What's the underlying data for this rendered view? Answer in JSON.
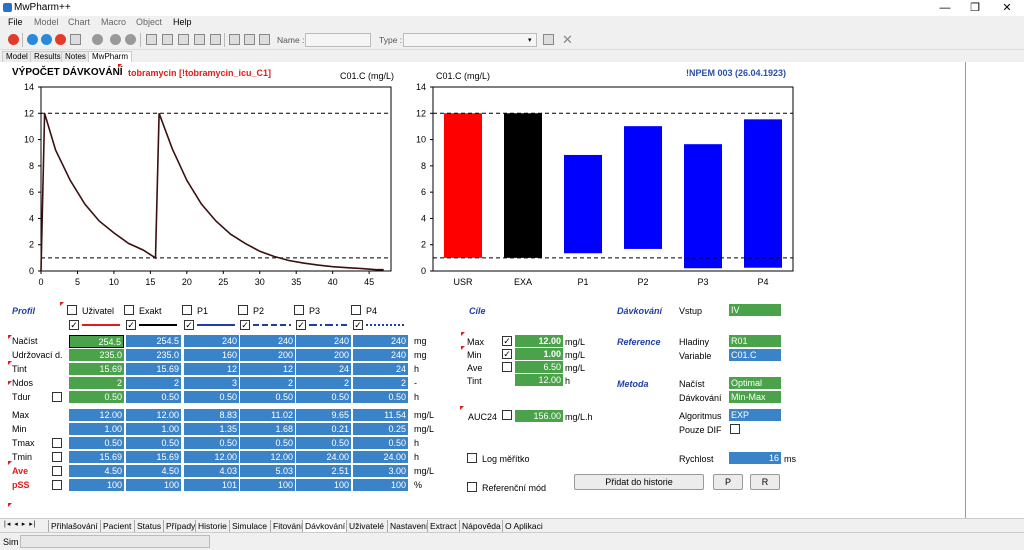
{
  "window": {
    "title": "MwPharm++",
    "minimize": "—",
    "restore": "❐",
    "close": "✕"
  },
  "menu": [
    "File",
    "Model",
    "Chart",
    "Macro",
    "Object",
    "Help"
  ],
  "toolbar": {
    "name_label": "Name :",
    "type_label": "Type :",
    "name_value": "",
    "type_value": ""
  },
  "top_tabs": [
    "Model",
    "Results",
    "Notes",
    "MwPharm"
  ],
  "header": {
    "title": "VÝPOČET DÁVKOVÁNÍ",
    "drug": "tobramycin [!tobramycin_icu_C1]",
    "patient": "!NPEM 003 (26.04.1923)"
  },
  "chart_data": [
    {
      "type": "line",
      "title": "",
      "xlabel": "",
      "ylabel": "C01.C (mg/L)",
      "xlim": [
        0,
        48
      ],
      "ylim": [
        0,
        14
      ],
      "xticks": [
        "0",
        "5",
        "10",
        "15",
        "20",
        "25",
        "30",
        "35",
        "40",
        "45"
      ],
      "yticks": [
        "0",
        "2",
        "4",
        "6",
        "8",
        "10",
        "12",
        "14"
      ],
      "reference_lines": [
        12,
        1
      ],
      "series": [
        {
          "x": [
            0,
            0.5,
            2,
            4,
            6,
            8,
            10,
            12,
            14,
            15.7,
            16.2,
            18,
            20,
            22,
            24,
            26,
            28,
            30,
            32,
            34,
            36,
            38,
            40,
            42,
            44,
            46,
            47
          ],
          "values": [
            0,
            12,
            9.2,
            6.9,
            5.1,
            3.8,
            2.9,
            2.1,
            1.6,
            1.0,
            12,
            9.3,
            6.9,
            5.1,
            3.8,
            2.8,
            2.1,
            1.5,
            1.1,
            0.8,
            0.6,
            0.45,
            0.33,
            0.25,
            0.18,
            0.1,
            0.1
          ]
        }
      ]
    },
    {
      "type": "bar",
      "title": "",
      "ylabel": "C01.C (mg/L)",
      "ylim": [
        0,
        14
      ],
      "yticks": [
        "0",
        "2",
        "4",
        "6",
        "8",
        "10",
        "12",
        "14"
      ],
      "reference_lines": [
        12,
        1
      ],
      "categories": [
        "USR",
        "EXA",
        "P1",
        "P2",
        "P3",
        "P4"
      ],
      "series": [
        {
          "name": "Min",
          "values": [
            1.0,
            1.0,
            1.35,
            1.68,
            0.21,
            0.25
          ]
        },
        {
          "name": "Max",
          "values": [
            12.0,
            12.0,
            8.83,
            11.02,
            9.65,
            11.54
          ]
        }
      ],
      "colors": [
        "#ff0000",
        "#000000",
        "#0000ff",
        "#0000ff",
        "#0000ff",
        "#0000ff"
      ]
    }
  ],
  "profil": {
    "title": "Profil",
    "columns": [
      "Uživatel",
      "Exakt",
      "P1",
      "P2",
      "P3",
      "P4"
    ],
    "row_labels_1": [
      "Načíst",
      "Udržovací d.",
      "Tint",
      "Ndos",
      "Tdur"
    ],
    "units_1": [
      "mg",
      "mg",
      "h",
      "-",
      "h"
    ],
    "table1": [
      [
        "254.5",
        "254.5",
        "240",
        "240",
        "240",
        "240"
      ],
      [
        "235.0",
        "235.0",
        "160",
        "200",
        "200",
        "240"
      ],
      [
        "15.69",
        "15.69",
        "12",
        "12",
        "24",
        "24"
      ],
      [
        "2",
        "2",
        "3",
        "2",
        "2",
        "2"
      ],
      [
        "0.50",
        "0.50",
        "0.50",
        "0.50",
        "0.50",
        "0.50"
      ]
    ],
    "row_labels_2": [
      "Max",
      "Min",
      "Tmax",
      "Tmin",
      "Ave",
      "pSS"
    ],
    "units_2": [
      "mg/L",
      "mg/L",
      "h",
      "h",
      "mg/L",
      "%"
    ],
    "table2": [
      [
        "12.00",
        "12.00",
        "8.83",
        "11.02",
        "9.65",
        "11.54"
      ],
      [
        "1.00",
        "1.00",
        "1.35",
        "1.68",
        "0.21",
        "0.25"
      ],
      [
        "0.50",
        "0.50",
        "0.50",
        "0.50",
        "0.50",
        "0.50"
      ],
      [
        "15.69",
        "15.69",
        "12.00",
        "12.00",
        "24.00",
        "24.00"
      ],
      [
        "4.50",
        "4.50",
        "4.03",
        "5.03",
        "2.51",
        "3.00"
      ],
      [
        "100",
        "100",
        "101",
        "100",
        "100",
        "100"
      ]
    ]
  },
  "cile": {
    "title": "Cíle",
    "rows": [
      {
        "label": "Max",
        "value": "12.00",
        "unit": "mg/L",
        "checked": true
      },
      {
        "label": "Min",
        "value": "1.00",
        "unit": "mg/L",
        "checked": true
      },
      {
        "label": "Ave",
        "value": "6.50",
        "unit": "mg/L",
        "checked": false
      },
      {
        "label": "Tint",
        "value": "12.00",
        "unit": "h"
      }
    ],
    "auc_label": "AUC24",
    "auc_value": "156.00",
    "auc_unit": "mg/L.h",
    "log_label": "Log měřítko",
    "ref_label": "Referenční mód"
  },
  "settings": {
    "davkovani": "Dávkování",
    "vstup_label": "Vstup",
    "vstup_value": "IV",
    "reference": "Reference",
    "hladiny_label": "Hladiny",
    "hladiny_value": "R01",
    "variable_label": "Variable",
    "variable_value": "C01.C",
    "metoda": "Metoda",
    "nacist_label": "Načíst",
    "nacist_value": "Optimal",
    "davk_label": "Dávkování",
    "davk_value": "Min-Max",
    "alg_label": "Algoritmus",
    "alg_value": "EXP",
    "pouze_label": "Pouze DIF",
    "rychlost_label": "Rychlost",
    "rychlost_value": "16",
    "rychlost_unit": "ms",
    "pridat": "Přidat do historie",
    "p_btn": "P",
    "r_btn": "R"
  },
  "bottom_tabs": [
    "Přihlašování",
    "Pacient",
    "Status",
    "Případy",
    "Historie",
    "Simulace",
    "Fitování",
    "Dávkování",
    "Uživatelé",
    "Nastavení",
    "Extract",
    "Nápověda",
    "O Aplikaci"
  ],
  "status": {
    "label": "Sim"
  }
}
